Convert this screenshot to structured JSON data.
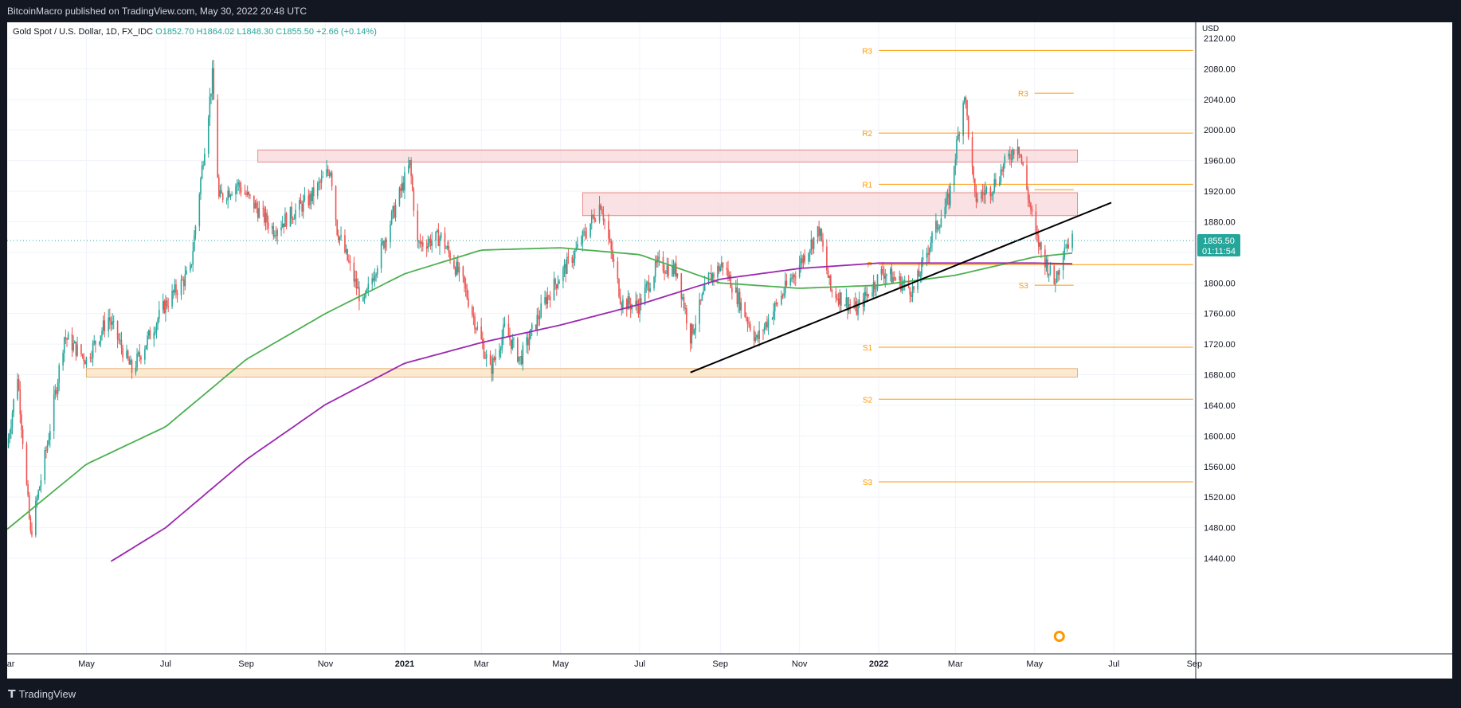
{
  "header": {
    "published": "BitcoinMacro published on TradingView.com, May 30, 2022 20:48 UTC"
  },
  "symbol": {
    "name": "Gold Spot / U.S. Dollar, 1D, FX_IDC",
    "open": "O1852.70",
    "high": "H1864.02",
    "low": "L1848.30",
    "close": "C1855.50",
    "change": "+2.66 (+0.14%)"
  },
  "footer": {
    "brand": "TradingView"
  },
  "price_tag": {
    "price": "1855.50",
    "countdown": "01:11:54"
  },
  "colors": {
    "up": "#26a69a",
    "down": "#ef5350",
    "sma_green": "#4caf50",
    "sma_purple": "#9c27b0",
    "pivot": "#ff9800",
    "zone_red": "#f8d7da",
    "zone_orange": "#fbe3c0",
    "trend": "#000000"
  },
  "chart_data": {
    "type": "candlestick",
    "title": "",
    "yaxis": {
      "unit": "USD",
      "range": [
        1440,
        2120
      ],
      "ticks": [
        "2120.00",
        "2080.00",
        "2040.00",
        "2000.00",
        "1960.00",
        "1920.00",
        "1880.00",
        "1840.00",
        "1800.00",
        "1760.00",
        "1720.00",
        "1680.00",
        "1640.00",
        "1600.00",
        "1560.00",
        "1520.00",
        "1480.00",
        "1440.00"
      ]
    },
    "xaxis": {
      "range": [
        "2020-03-01",
        "2022-09-02"
      ],
      "ticks": [
        {
          "label": "Mar",
          "date": "2020-03-01"
        },
        {
          "label": "May",
          "date": "2020-05-01"
        },
        {
          "label": "Jul",
          "date": "2020-07-01"
        },
        {
          "label": "Sep",
          "date": "2020-09-01"
        },
        {
          "label": "Nov",
          "date": "2020-11-01"
        },
        {
          "label": "2021",
          "date": "2021-01-01",
          "bold": true
        },
        {
          "label": "Mar",
          "date": "2021-03-01"
        },
        {
          "label": "May",
          "date": "2021-05-01"
        },
        {
          "label": "Jul",
          "date": "2021-07-01"
        },
        {
          "label": "Sep",
          "date": "2021-09-01"
        },
        {
          "label": "Nov",
          "date": "2021-11-01"
        },
        {
          "label": "2022",
          "date": "2022-01-01",
          "bold": true
        },
        {
          "label": "Mar",
          "date": "2022-03-01"
        },
        {
          "label": "May",
          "date": "2022-05-01"
        },
        {
          "label": "Jul",
          "date": "2022-07-01"
        },
        {
          "label": "Sep",
          "date": "2022-09-01"
        }
      ]
    },
    "price_anchors": [
      [
        "2020-03-01",
        1585
      ],
      [
        "2020-03-09",
        1680
      ],
      [
        "2020-03-19",
        1470
      ],
      [
        "2020-04-01",
        1590
      ],
      [
        "2020-04-14",
        1730
      ],
      [
        "2020-05-01",
        1700
      ],
      [
        "2020-05-18",
        1755
      ],
      [
        "2020-06-05",
        1685
      ],
      [
        "2020-06-30",
        1770
      ],
      [
        "2020-07-20",
        1815
      ],
      [
        "2020-08-06",
        2070
      ],
      [
        "2020-08-11",
        1910
      ],
      [
        "2020-08-25",
        1930
      ],
      [
        "2020-09-22",
        1870
      ],
      [
        "2020-10-20",
        1910
      ],
      [
        "2020-11-05",
        1950
      ],
      [
        "2020-11-10",
        1870
      ],
      [
        "2020-11-30",
        1770
      ],
      [
        "2020-12-21",
        1880
      ],
      [
        "2021-01-05",
        1955
      ],
      [
        "2021-01-11",
        1850
      ],
      [
        "2021-01-29",
        1860
      ],
      [
        "2021-02-15",
        1800
      ],
      [
        "2021-03-08",
        1685
      ],
      [
        "2021-03-19",
        1740
      ],
      [
        "2021-03-31",
        1700
      ],
      [
        "2021-04-20",
        1780
      ],
      [
        "2021-05-14",
        1845
      ],
      [
        "2021-06-01",
        1905
      ],
      [
        "2021-06-17",
        1775
      ],
      [
        "2021-06-30",
        1770
      ],
      [
        "2021-07-15",
        1825
      ],
      [
        "2021-07-30",
        1815
      ],
      [
        "2021-08-09",
        1730
      ],
      [
        "2021-08-23",
        1805
      ],
      [
        "2021-09-03",
        1825
      ],
      [
        "2021-09-29",
        1725
      ],
      [
        "2021-10-22",
        1795
      ],
      [
        "2021-11-16",
        1870
      ],
      [
        "2021-11-25",
        1790
      ],
      [
        "2021-12-15",
        1765
      ],
      [
        "2022-01-04",
        1815
      ],
      [
        "2022-01-28",
        1790
      ],
      [
        "2022-02-11",
        1860
      ],
      [
        "2022-02-24",
        1910
      ],
      [
        "2022-03-08",
        2050
      ],
      [
        "2022-03-16",
        1910
      ],
      [
        "2022-03-29",
        1925
      ],
      [
        "2022-04-18",
        1985
      ],
      [
        "2022-05-02",
        1860
      ],
      [
        "2022-05-16",
        1800
      ],
      [
        "2022-05-24",
        1850
      ],
      [
        "2022-05-30",
        1855.5
      ]
    ],
    "sma_green": [
      [
        "2020-03-01",
        1478
      ],
      [
        "2020-05-01",
        1563
      ],
      [
        "2020-07-01",
        1612
      ],
      [
        "2020-09-01",
        1700
      ],
      [
        "2020-11-01",
        1760
      ],
      [
        "2021-01-01",
        1812
      ],
      [
        "2021-03-01",
        1843
      ],
      [
        "2021-05-01",
        1846
      ],
      [
        "2021-07-01",
        1837
      ],
      [
        "2021-09-01",
        1800
      ],
      [
        "2021-11-01",
        1793
      ],
      [
        "2022-01-01",
        1797
      ],
      [
        "2022-03-01",
        1810
      ],
      [
        "2022-05-01",
        1834
      ],
      [
        "2022-05-30",
        1839
      ]
    ],
    "sma_purple": [
      [
        "2020-05-20",
        1436
      ],
      [
        "2020-07-01",
        1480
      ],
      [
        "2020-09-01",
        1569
      ],
      [
        "2020-11-01",
        1641
      ],
      [
        "2021-01-01",
        1695
      ],
      [
        "2021-03-01",
        1722
      ],
      [
        "2021-05-01",
        1745
      ],
      [
        "2021-07-01",
        1772
      ],
      [
        "2021-09-01",
        1805
      ],
      [
        "2021-11-01",
        1819
      ],
      [
        "2022-01-01",
        1826
      ],
      [
        "2022-03-01",
        1826
      ],
      [
        "2022-05-01",
        1826
      ],
      [
        "2022-05-30",
        1825
      ]
    ],
    "trendline": {
      "from": [
        "2021-08-09",
        1683
      ],
      "to": [
        "2022-06-29",
        1905
      ]
    },
    "zones": [
      {
        "from": "2020-09-10",
        "to": "2022-06-03",
        "low": 1958,
        "high": 1974,
        "color": "red"
      },
      {
        "from": "2021-05-18",
        "to": "2022-06-03",
        "low": 1888,
        "high": 1918,
        "color": "red"
      },
      {
        "from": "2020-05-01",
        "to": "2022-06-03",
        "low": 1677,
        "high": 1688,
        "color": "orange"
      }
    ],
    "pivots": [
      {
        "label": "R3",
        "value": 2104,
        "from": "2022-01-01",
        "to": "2022-08-31"
      },
      {
        "label": "R2",
        "value": 1996,
        "from": "2022-01-01",
        "to": "2022-08-31"
      },
      {
        "label": "R1",
        "value": 1929,
        "from": "2022-01-01",
        "to": "2022-08-31"
      },
      {
        "label": "P",
        "value": 1824,
        "from": "2022-01-01",
        "to": "2022-08-31"
      },
      {
        "label": "S1",
        "value": 1716,
        "from": "2022-01-01",
        "to": "2022-08-31"
      },
      {
        "label": "S2",
        "value": 1648,
        "from": "2022-01-01",
        "to": "2022-08-31"
      },
      {
        "label": "S3",
        "value": 1540,
        "from": "2022-01-01",
        "to": "2022-08-31"
      },
      {
        "label": "R3",
        "value": 2048,
        "from": "2022-05-01",
        "to": "2022-05-31"
      },
      {
        "label": "",
        "value": 1922,
        "from": "2022-05-01",
        "to": "2022-05-31"
      },
      {
        "label": "S3",
        "value": 1797,
        "from": "2022-05-01",
        "to": "2022-05-31"
      }
    ],
    "last_price": 1855.5
  }
}
